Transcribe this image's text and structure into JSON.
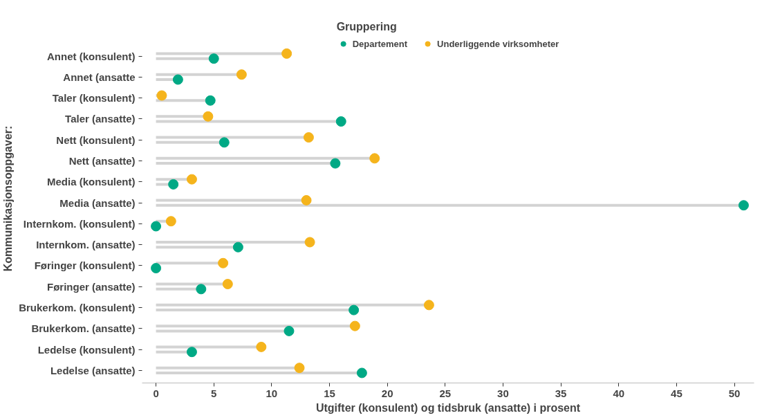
{
  "chart_data": {
    "type": "lollipop",
    "orientation": "horizontal",
    "xlabel": "Utgifter (konsulent) og tidsbruk (ansatte) i prosent",
    "ylabel": "Kommunikasjonsoppgaver:",
    "legend_title": "Gruppering",
    "legend": "top",
    "categories": [
      "Annet (konsulent)",
      "Annet (ansatte",
      "Taler (konsulent)",
      "Taler (ansatte)",
      "Nett (konsulent)",
      "Nett (ansatte)",
      "Media (konsulent)",
      "Media (ansatte)",
      "Internkom. (konsulent)",
      "Internkom. (ansatte)",
      "Føringer (konsulent)",
      "Føringer (ansatte)",
      "Brukerkom. (konsulent)",
      "Brukerkom. (ansatte)",
      "Ledelse (konsulent)",
      "Ledelse (ansatte)"
    ],
    "series": [
      {
        "name": "Departement",
        "color": "#00a985",
        "values": [
          5.0,
          1.9,
          4.7,
          16.0,
          5.9,
          15.5,
          1.5,
          50.8,
          0,
          7.1,
          0,
          3.9,
          17.1,
          11.5,
          3.1,
          17.8
        ]
      },
      {
        "name": "Underliggende virksomheter",
        "color": "#f5b41c",
        "values": [
          11.3,
          7.4,
          0.5,
          4.5,
          13.2,
          18.9,
          3.1,
          13.0,
          1.3,
          13.3,
          5.8,
          6.2,
          23.6,
          17.2,
          9.1,
          12.4
        ]
      }
    ],
    "xlim": [
      -1.2,
      51.7
    ],
    "xticks": [
      0,
      5,
      10,
      15,
      20,
      25,
      30,
      35,
      40,
      45,
      50
    ],
    "grid": false,
    "marker": "circle"
  }
}
